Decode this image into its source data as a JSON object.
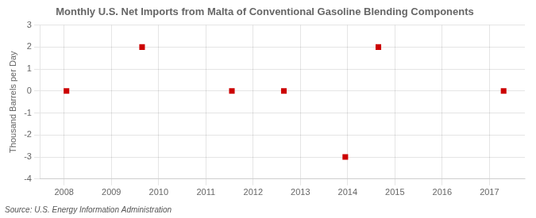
{
  "chart_data": {
    "type": "scatter",
    "title": "Monthly U.S. Net Imports from Malta of Conventional Gasoline Blending Components",
    "ylabel": "Thousand Barrels per Day",
    "source": "Source: U.S. Energy Information Administration",
    "x": [
      2008.05,
      2009.65,
      2011.55,
      2012.65,
      2013.95,
      2014.65,
      2017.3
    ],
    "values": [
      0,
      2,
      0,
      0,
      -3,
      2,
      0
    ],
    "color": "#cc0000",
    "marker": "square",
    "xlim": [
      2007.5,
      2017.75
    ],
    "ylim": [
      -4,
      3
    ],
    "xticks": [
      2008,
      2009,
      2010,
      2011,
      2012,
      2013,
      2014,
      2015,
      2016,
      2017
    ],
    "yticks": [
      -4,
      -3,
      -2,
      -1,
      0,
      1,
      2,
      3
    ],
    "grid": true
  }
}
